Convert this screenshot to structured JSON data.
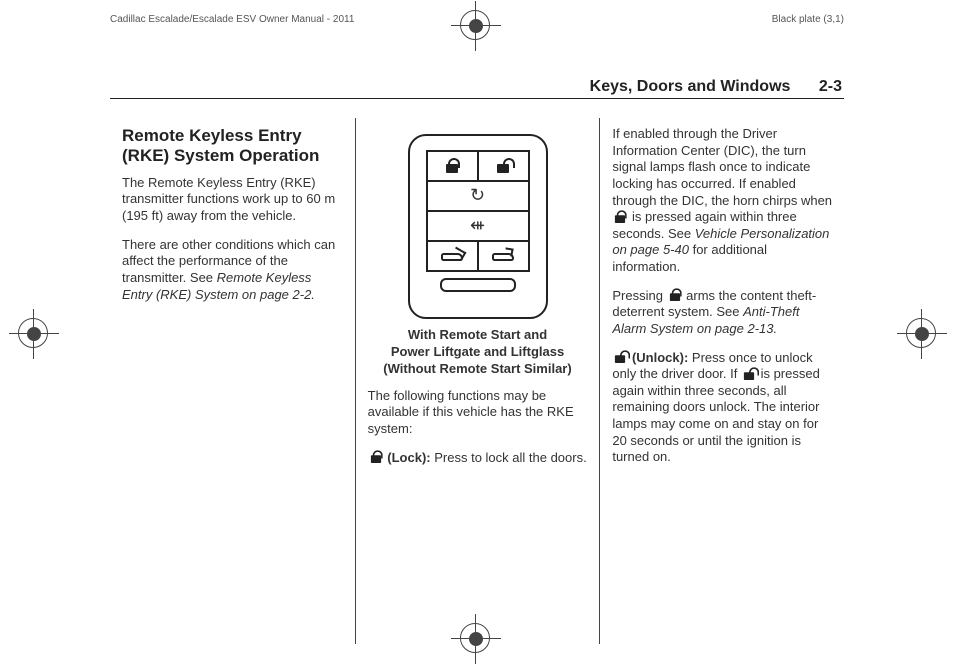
{
  "header": {
    "manual_title": "Cadillac Escalade/Escalade ESV Owner Manual - 2011",
    "plate": "Black plate (3,1)"
  },
  "page_heading": {
    "title": "Keys, Doors and Windows",
    "number": "2-3"
  },
  "col1": {
    "section_title": "Remote Keyless Entry (RKE) System Operation",
    "p1": "The Remote Keyless Entry (RKE) transmitter functions work up to 60 m (195 ft) away from the vehicle.",
    "p2_pre": "There are other conditions which can affect the performance of the transmitter. See ",
    "p2_ref": "Remote Keyless Entry (RKE) System on page 2-2."
  },
  "col2": {
    "caption_l1": "With Remote Start and",
    "caption_l2": "Power Liftgate and Liftglass",
    "caption_l3": "(Without Remote Start Similar)",
    "p1": "The following functions may be available if this vehicle has the RKE system:",
    "lock_label": " (Lock):",
    "lock_text": "   Press to lock all the doors.",
    "remote_icons": {
      "row1_left": "lock",
      "row1_right": "unlock",
      "row2": "remote-start",
      "row3": "panic",
      "row4_left": "liftgate",
      "row4_right": "liftglass"
    }
  },
  "col3": {
    "p1_pre": "If enabled through the Driver Information Center (DIC), the turn signal lamps flash once to indicate locking has occurred. If enabled through the DIC, the horn chirps when ",
    "p1_post": " is pressed again within three seconds. See ",
    "p1_ref": "Vehicle Personalization on page 5-40",
    "p1_tail": " for additional information.",
    "p2_pre": "Pressing ",
    "p2_post": " arms the content theft-deterrent system. See ",
    "p2_ref": "Anti-Theft Alarm System on page 2-13.",
    "unlock_label": " (Unlock):",
    "unlock_text_pre": "   Press once to unlock only the driver door. If ",
    "unlock_text_post": " is pressed again within three seconds, all remaining doors unlock. The interior lamps may come on and stay on for 20 seconds or until the ignition is turned on."
  }
}
